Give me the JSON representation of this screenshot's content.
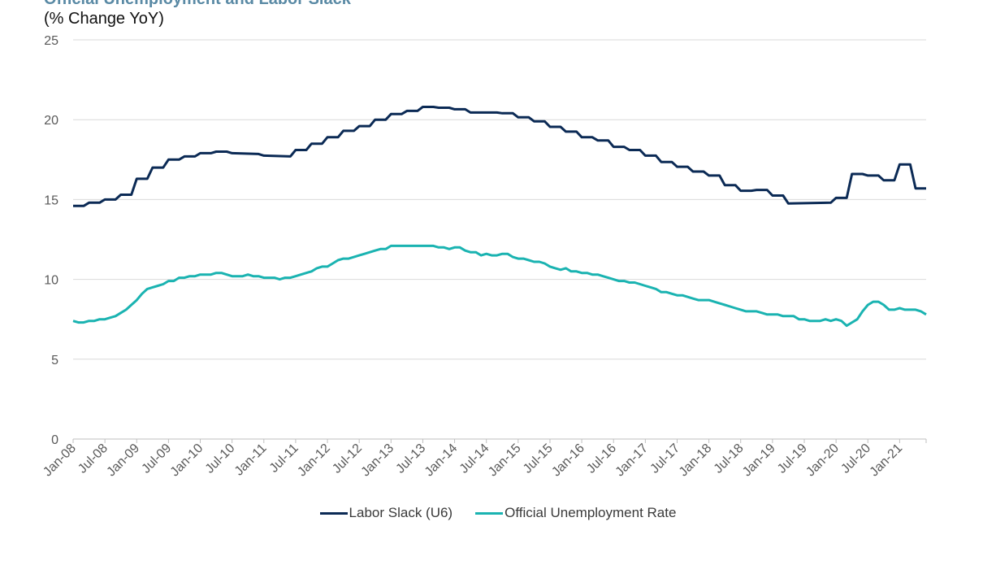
{
  "header": {
    "title": "Official Unemployment and Labor Slack",
    "subtitle": "(% Change YoY)"
  },
  "colors": {
    "u6": "#0b2a55",
    "unemp": "#1ab3b1",
    "grid": "#d9d9d9",
    "axis": "#bfbfbf"
  },
  "chart_data": {
    "type": "line",
    "title": "Official Unemployment and Labor Slack",
    "subtitle": "(% Change YoY)",
    "ylim": [
      0,
      25
    ],
    "yticks": [
      0,
      5,
      10,
      15,
      20,
      25
    ],
    "x_start": "Jan-08",
    "x_end": "Jun-21",
    "xtick_labels": [
      "Jan-08",
      "Jul-08",
      "Jan-09",
      "Jul-09",
      "Jan-10",
      "Jul-10",
      "Jan-11",
      "Jul-11",
      "Jan-12",
      "Jul-12",
      "Jan-13",
      "Jul-13",
      "Jan-14",
      "Jul-14",
      "Jan-15",
      "Jul-15",
      "Jan-16",
      "Jul-16",
      "Jan-17",
      "Jul-17",
      "Jan-18",
      "Jul-18",
      "Jan-19",
      "Jul-19",
      "Jan-20",
      "Jul-20",
      "Jan-21"
    ],
    "grid": true,
    "legend_position": "bottom",
    "series": [
      {
        "name": "Labor Slack (U6)",
        "color": "#0b2a55",
        "points": [
          [
            "Jan-08",
            14.6
          ],
          [
            "Mar-08",
            14.6
          ],
          [
            "Apr-08",
            14.8
          ],
          [
            "Jun-08",
            14.8
          ],
          [
            "Jul-08",
            15.0
          ],
          [
            "Sep-08",
            15.0
          ],
          [
            "Oct-08",
            15.3
          ],
          [
            "Dec-08",
            15.3
          ],
          [
            "Jan-09",
            16.3
          ],
          [
            "Mar-09",
            16.3
          ],
          [
            "Apr-09",
            17.0
          ],
          [
            "Jun-09",
            17.0
          ],
          [
            "Jul-09",
            17.5
          ],
          [
            "Sep-09",
            17.5
          ],
          [
            "Oct-09",
            17.7
          ],
          [
            "Dec-09",
            17.7
          ],
          [
            "Jan-10",
            17.9
          ],
          [
            "Mar-10",
            17.9
          ],
          [
            "Apr-10",
            18.0
          ],
          [
            "Jun-10",
            18.0
          ],
          [
            "Jul-10",
            17.9
          ],
          [
            "Dec-10",
            17.85
          ],
          [
            "Jan-11",
            17.75
          ],
          [
            "Jun-11",
            17.7
          ],
          [
            "Jul-11",
            18.1
          ],
          [
            "Sep-11",
            18.1
          ],
          [
            "Oct-11",
            18.5
          ],
          [
            "Dec-11",
            18.5
          ],
          [
            "Jan-12",
            18.9
          ],
          [
            "Mar-12",
            18.9
          ],
          [
            "Apr-12",
            19.3
          ],
          [
            "Jun-12",
            19.3
          ],
          [
            "Jul-12",
            19.6
          ],
          [
            "Sep-12",
            19.6
          ],
          [
            "Oct-12",
            20.0
          ],
          [
            "Dec-12",
            20.0
          ],
          [
            "Jan-13",
            20.35
          ],
          [
            "Mar-13",
            20.35
          ],
          [
            "Apr-13",
            20.55
          ],
          [
            "Jun-13",
            20.55
          ],
          [
            "Jul-13",
            20.8
          ],
          [
            "Sep-13",
            20.8
          ],
          [
            "Oct-13",
            20.75
          ],
          [
            "Dec-13",
            20.75
          ],
          [
            "Jan-14",
            20.65
          ],
          [
            "Mar-14",
            20.65
          ],
          [
            "Apr-14",
            20.45
          ],
          [
            "Sep-14",
            20.45
          ],
          [
            "Oct-14",
            20.4
          ],
          [
            "Dec-14",
            20.4
          ],
          [
            "Jan-15",
            20.15
          ],
          [
            "Mar-15",
            20.15
          ],
          [
            "Apr-15",
            19.9
          ],
          [
            "Jun-15",
            19.9
          ],
          [
            "Jul-15",
            19.55
          ],
          [
            "Sep-15",
            19.55
          ],
          [
            "Oct-15",
            19.25
          ],
          [
            "Dec-15",
            19.25
          ],
          [
            "Jan-16",
            18.9
          ],
          [
            "Mar-16",
            18.9
          ],
          [
            "Apr-16",
            18.7
          ],
          [
            "Jun-16",
            18.7
          ],
          [
            "Jul-16",
            18.3
          ],
          [
            "Sep-16",
            18.3
          ],
          [
            "Oct-16",
            18.1
          ],
          [
            "Dec-16",
            18.1
          ],
          [
            "Jan-17",
            17.75
          ],
          [
            "Mar-17",
            17.75
          ],
          [
            "Apr-17",
            17.35
          ],
          [
            "Jun-17",
            17.35
          ],
          [
            "Jul-17",
            17.05
          ],
          [
            "Sep-17",
            17.05
          ],
          [
            "Oct-17",
            16.75
          ],
          [
            "Dec-17",
            16.75
          ],
          [
            "Jan-18",
            16.5
          ],
          [
            "Mar-18",
            16.5
          ],
          [
            "Apr-18",
            15.9
          ],
          [
            "Jun-18",
            15.9
          ],
          [
            "Jul-18",
            15.55
          ],
          [
            "Sep-18",
            15.55
          ],
          [
            "Oct-18",
            15.6
          ],
          [
            "Dec-18",
            15.6
          ],
          [
            "Jan-19",
            15.25
          ],
          [
            "Mar-19",
            15.25
          ],
          [
            "Apr-19",
            14.75
          ],
          [
            "Dec-19",
            14.8
          ],
          [
            "Jan-20",
            15.1
          ],
          [
            "Mar-20",
            15.1
          ],
          [
            "Apr-20",
            16.6
          ],
          [
            "Jun-20",
            16.6
          ],
          [
            "Jul-20",
            16.5
          ],
          [
            "Sep-20",
            16.5
          ],
          [
            "Oct-20",
            16.2
          ],
          [
            "Dec-20",
            16.2
          ],
          [
            "Jan-21",
            17.2
          ],
          [
            "Mar-21",
            17.2
          ],
          [
            "Apr-21",
            15.7
          ],
          [
            "Jun-21",
            15.7
          ]
        ]
      },
      {
        "name": "Official Unemployment Rate",
        "color": "#1ab3b1",
        "points": [
          [
            "Jan-08",
            7.4
          ],
          [
            "Feb-08",
            7.3
          ],
          [
            "Mar-08",
            7.3
          ],
          [
            "Apr-08",
            7.4
          ],
          [
            "May-08",
            7.4
          ],
          [
            "Jun-08",
            7.5
          ],
          [
            "Jul-08",
            7.5
          ],
          [
            "Aug-08",
            7.6
          ],
          [
            "Sep-08",
            7.7
          ],
          [
            "Oct-08",
            7.9
          ],
          [
            "Nov-08",
            8.1
          ],
          [
            "Dec-08",
            8.4
          ],
          [
            "Jan-09",
            8.7
          ],
          [
            "Feb-09",
            9.1
          ],
          [
            "Mar-09",
            9.4
          ],
          [
            "Apr-09",
            9.5
          ],
          [
            "May-09",
            9.6
          ],
          [
            "Jun-09",
            9.7
          ],
          [
            "Jul-09",
            9.9
          ],
          [
            "Aug-09",
            9.9
          ],
          [
            "Sep-09",
            10.1
          ],
          [
            "Oct-09",
            10.1
          ],
          [
            "Nov-09",
            10.2
          ],
          [
            "Dec-09",
            10.2
          ],
          [
            "Jan-10",
            10.3
          ],
          [
            "Feb-10",
            10.3
          ],
          [
            "Mar-10",
            10.3
          ],
          [
            "Apr-10",
            10.4
          ],
          [
            "May-10",
            10.4
          ],
          [
            "Jun-10",
            10.3
          ],
          [
            "Jul-10",
            10.2
          ],
          [
            "Aug-10",
            10.2
          ],
          [
            "Sep-10",
            10.2
          ],
          [
            "Oct-10",
            10.3
          ],
          [
            "Nov-10",
            10.2
          ],
          [
            "Dec-10",
            10.2
          ],
          [
            "Jan-11",
            10.1
          ],
          [
            "Feb-11",
            10.1
          ],
          [
            "Mar-11",
            10.1
          ],
          [
            "Apr-11",
            10.0
          ],
          [
            "May-11",
            10.1
          ],
          [
            "Jun-11",
            10.1
          ],
          [
            "Jul-11",
            10.2
          ],
          [
            "Aug-11",
            10.3
          ],
          [
            "Sep-11",
            10.4
          ],
          [
            "Oct-11",
            10.5
          ],
          [
            "Nov-11",
            10.7
          ],
          [
            "Dec-11",
            10.8
          ],
          [
            "Jan-12",
            10.8
          ],
          [
            "Feb-12",
            11.0
          ],
          [
            "Mar-12",
            11.2
          ],
          [
            "Apr-12",
            11.3
          ],
          [
            "May-12",
            11.3
          ],
          [
            "Jun-12",
            11.4
          ],
          [
            "Jul-12",
            11.5
          ],
          [
            "Aug-12",
            11.6
          ],
          [
            "Sep-12",
            11.7
          ],
          [
            "Oct-12",
            11.8
          ],
          [
            "Nov-12",
            11.9
          ],
          [
            "Dec-12",
            11.9
          ],
          [
            "Jan-13",
            12.1
          ],
          [
            "Feb-13",
            12.1
          ],
          [
            "Mar-13",
            12.1
          ],
          [
            "Apr-13",
            12.1
          ],
          [
            "May-13",
            12.1
          ],
          [
            "Jun-13",
            12.1
          ],
          [
            "Jul-13",
            12.1
          ],
          [
            "Aug-13",
            12.1
          ],
          [
            "Sep-13",
            12.1
          ],
          [
            "Oct-13",
            12.0
          ],
          [
            "Nov-13",
            12.0
          ],
          [
            "Dec-13",
            11.9
          ],
          [
            "Jan-14",
            12.0
          ],
          [
            "Feb-14",
            12.0
          ],
          [
            "Mar-14",
            11.8
          ],
          [
            "Apr-14",
            11.7
          ],
          [
            "May-14",
            11.7
          ],
          [
            "Jun-14",
            11.5
          ],
          [
            "Jul-14",
            11.6
          ],
          [
            "Aug-14",
            11.5
          ],
          [
            "Sep-14",
            11.5
          ],
          [
            "Oct-14",
            11.6
          ],
          [
            "Nov-14",
            11.6
          ],
          [
            "Dec-14",
            11.4
          ],
          [
            "Jan-15",
            11.3
          ],
          [
            "Feb-15",
            11.3
          ],
          [
            "Mar-15",
            11.2
          ],
          [
            "Apr-15",
            11.1
          ],
          [
            "May-15",
            11.1
          ],
          [
            "Jun-15",
            11.0
          ],
          [
            "Jul-15",
            10.8
          ],
          [
            "Aug-15",
            10.7
          ],
          [
            "Sep-15",
            10.6
          ],
          [
            "Oct-15",
            10.7
          ],
          [
            "Nov-15",
            10.5
          ],
          [
            "Dec-15",
            10.5
          ],
          [
            "Jan-16",
            10.4
          ],
          [
            "Feb-16",
            10.4
          ],
          [
            "Mar-16",
            10.3
          ],
          [
            "Apr-16",
            10.3
          ],
          [
            "May-16",
            10.2
          ],
          [
            "Jun-16",
            10.1
          ],
          [
            "Jul-16",
            10.0
          ],
          [
            "Aug-16",
            9.9
          ],
          [
            "Sep-16",
            9.9
          ],
          [
            "Oct-16",
            9.8
          ],
          [
            "Nov-16",
            9.8
          ],
          [
            "Dec-16",
            9.7
          ],
          [
            "Jan-17",
            9.6
          ],
          [
            "Feb-17",
            9.5
          ],
          [
            "Mar-17",
            9.4
          ],
          [
            "Apr-17",
            9.2
          ],
          [
            "May-17",
            9.2
          ],
          [
            "Jun-17",
            9.1
          ],
          [
            "Jul-17",
            9.0
          ],
          [
            "Aug-17",
            9.0
          ],
          [
            "Sep-17",
            8.9
          ],
          [
            "Oct-17",
            8.8
          ],
          [
            "Nov-17",
            8.7
          ],
          [
            "Dec-17",
            8.7
          ],
          [
            "Jan-18",
            8.7
          ],
          [
            "Feb-18",
            8.6
          ],
          [
            "Mar-18",
            8.5
          ],
          [
            "Apr-18",
            8.4
          ],
          [
            "May-18",
            8.3
          ],
          [
            "Jun-18",
            8.2
          ],
          [
            "Jul-18",
            8.1
          ],
          [
            "Aug-18",
            8.0
          ],
          [
            "Sep-18",
            8.0
          ],
          [
            "Oct-18",
            8.0
          ],
          [
            "Nov-18",
            7.9
          ],
          [
            "Dec-18",
            7.8
          ],
          [
            "Jan-19",
            7.8
          ],
          [
            "Feb-19",
            7.8
          ],
          [
            "Mar-19",
            7.7
          ],
          [
            "Apr-19",
            7.7
          ],
          [
            "May-19",
            7.7
          ],
          [
            "Jun-19",
            7.5
          ],
          [
            "Jul-19",
            7.5
          ],
          [
            "Aug-19",
            7.4
          ],
          [
            "Sep-19",
            7.4
          ],
          [
            "Oct-19",
            7.4
          ],
          [
            "Nov-19",
            7.5
          ],
          [
            "Dec-19",
            7.4
          ],
          [
            "Jan-20",
            7.5
          ],
          [
            "Feb-20",
            7.4
          ],
          [
            "Mar-20",
            7.1
          ],
          [
            "Apr-20",
            7.3
          ],
          [
            "May-20",
            7.5
          ],
          [
            "Jun-20",
            8.0
          ],
          [
            "Jul-20",
            8.4
          ],
          [
            "Aug-20",
            8.6
          ],
          [
            "Sep-20",
            8.6
          ],
          [
            "Oct-20",
            8.4
          ],
          [
            "Nov-20",
            8.1
          ],
          [
            "Dec-20",
            8.1
          ],
          [
            "Jan-21",
            8.2
          ],
          [
            "Feb-21",
            8.1
          ],
          [
            "Mar-21",
            8.1
          ],
          [
            "Apr-21",
            8.1
          ],
          [
            "May-21",
            8.0
          ],
          [
            "Jun-21",
            7.8
          ]
        ]
      }
    ]
  },
  "legend": {
    "items": [
      {
        "label": "Labor Slack (U6)",
        "color": "#0b2a55"
      },
      {
        "label": "Official Unemployment Rate",
        "color": "#1ab3b1"
      }
    ]
  }
}
